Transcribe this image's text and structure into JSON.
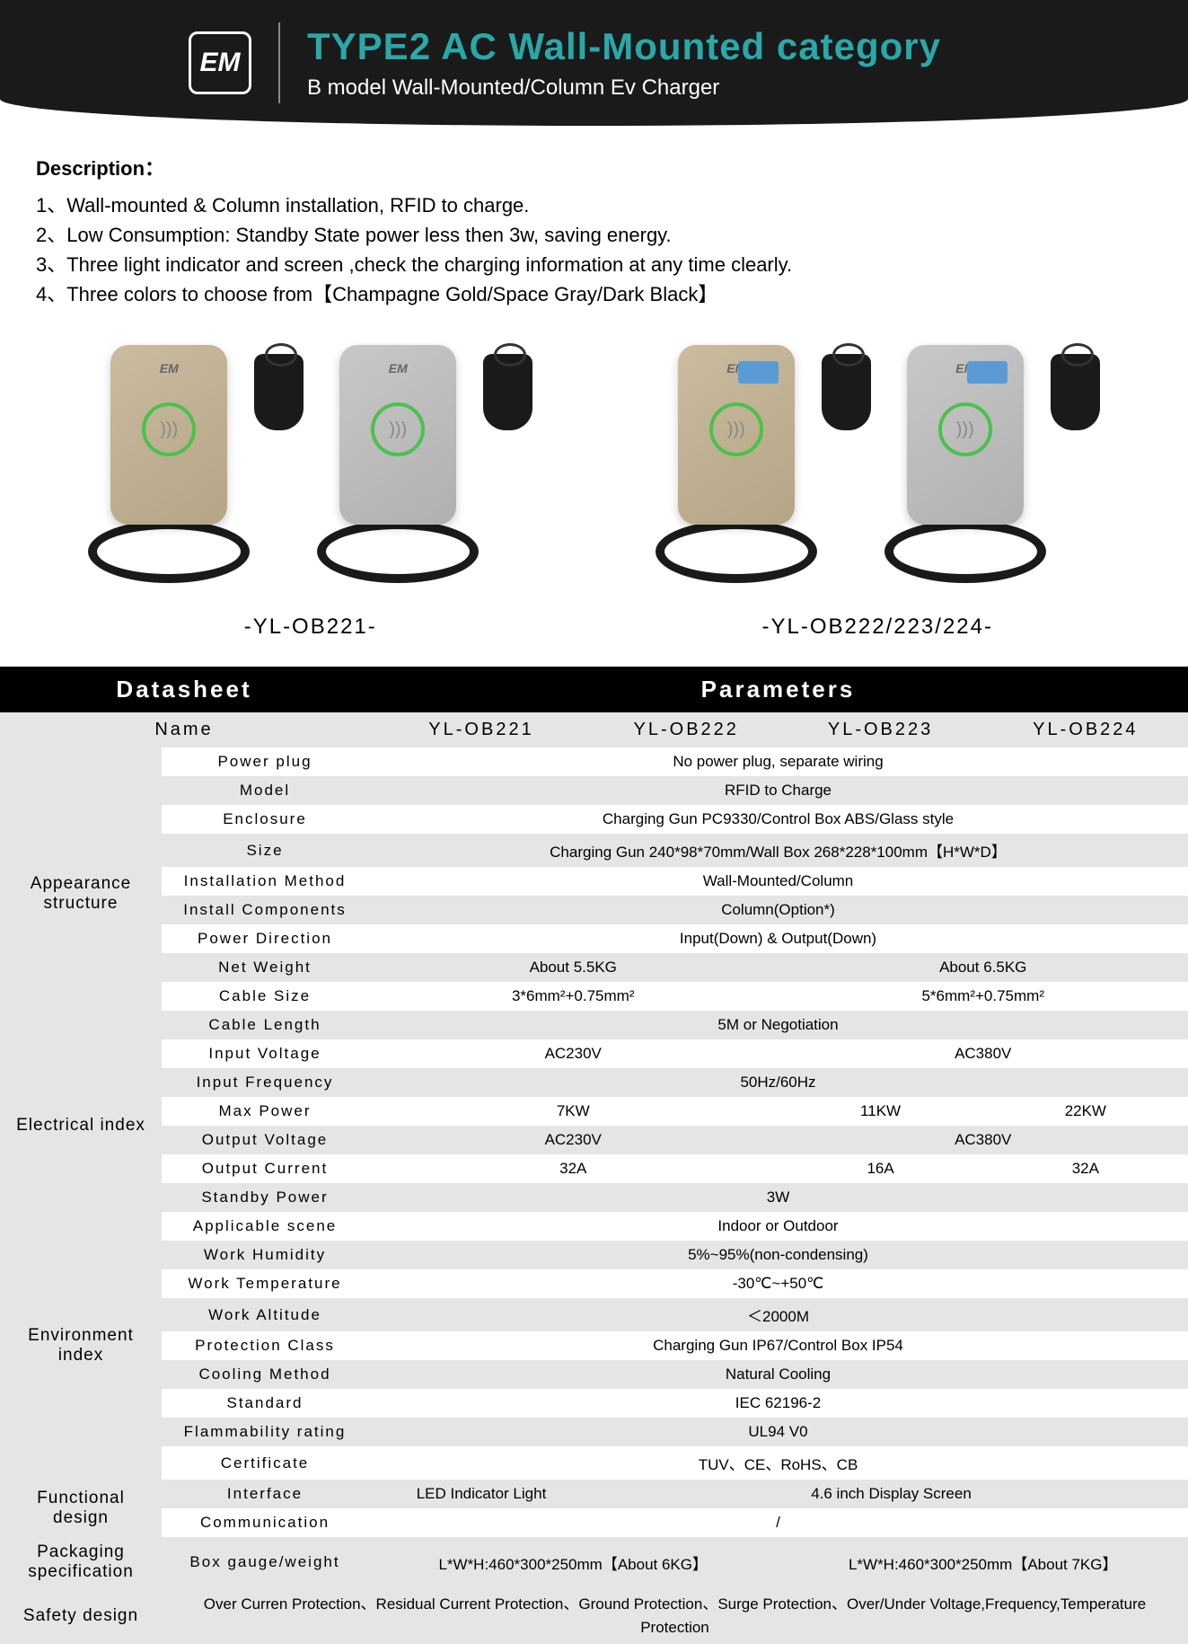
{
  "header": {
    "logo": "EM",
    "title": "TYPE2 AC Wall-Mounted category",
    "subtitle": "B model Wall-Mounted/Column Ev Charger"
  },
  "description": {
    "heading": "Description：",
    "lines": [
      "1、Wall-mounted & Column installation, RFID to charge.",
      "2、Low Consumption: Standby State power less then 3w, saving energy.",
      "3、Three light indicator and screen ,check the charging information at any time clearly.",
      "4、Three colors to choose from【Champagne Gold/Space Gray/Dark Black】"
    ]
  },
  "products": {
    "colors": {
      "gold": "#cbbba0",
      "gray": "#c8c8c8"
    },
    "label_left": "-YL-OB221-",
    "label_right": "-YL-OB222/223/224-"
  },
  "table": {
    "headers": {
      "datasheet": "Datasheet",
      "parameters": "Parameters"
    },
    "name_row": {
      "label": "Name",
      "cols": [
        "YL-OB221",
        "YL-OB222",
        "YL-OB223",
        "YL-OB224"
      ]
    },
    "sections": [
      {
        "category": "Appearance structure",
        "rows": [
          {
            "label": "Power plug",
            "span": 4,
            "vals": [
              "No power plug, separate wiring"
            ]
          },
          {
            "label": "Model",
            "span": 4,
            "vals": [
              "RFID to Charge"
            ]
          },
          {
            "label": "Enclosure",
            "span": 4,
            "vals": [
              "Charging Gun PC9330/Control Box ABS/Glass style"
            ]
          },
          {
            "label": "Size",
            "span": 4,
            "vals": [
              "Charging Gun 240*98*70mm/Wall Box 268*228*100mm【H*W*D】"
            ]
          },
          {
            "label": "Installation Method",
            "span": 4,
            "vals": [
              "Wall-Mounted/Column"
            ]
          },
          {
            "label": "Install Components",
            "span": 4,
            "vals": [
              "Column(Option*)"
            ]
          },
          {
            "label": "Power Direction",
            "span": 4,
            "vals": [
              "Input(Down) & Output(Down)"
            ]
          },
          {
            "label": "Net Weight",
            "span": 2,
            "vals": [
              "About 5.5KG",
              "About 6.5KG"
            ]
          },
          {
            "label": "Cable Size",
            "span": 2,
            "vals": [
              "3*6mm²+0.75mm²",
              "5*6mm²+0.75mm²"
            ]
          },
          {
            "label": "Cable Length",
            "span": 4,
            "vals": [
              "5M or Negotiation"
            ]
          }
        ]
      },
      {
        "category": "Electrical index",
        "rows": [
          {
            "label": "Input Voltage",
            "span": 2,
            "vals": [
              "AC230V",
              "AC380V"
            ]
          },
          {
            "label": "Input Frequency",
            "span": 4,
            "vals": [
              "50Hz/60Hz"
            ]
          },
          {
            "label": "Max Power",
            "span": 0,
            "vals": [
              "7KW",
              "11KW",
              "22KW"
            ],
            "spans": [
              2,
              1,
              1
            ]
          },
          {
            "label": "Output Voltage",
            "span": 0,
            "vals": [
              "AC230V",
              "AC380V"
            ],
            "spans": [
              2,
              2
            ]
          },
          {
            "label": "Output Current",
            "span": 0,
            "vals": [
              "32A",
              "16A",
              "32A"
            ],
            "spans": [
              2,
              1,
              1
            ]
          },
          {
            "label": "Standby Power",
            "span": 4,
            "vals": [
              "3W"
            ]
          }
        ]
      },
      {
        "category": "Environment index",
        "rows": [
          {
            "label": "Applicable scene",
            "span": 4,
            "vals": [
              "Indoor or Outdoor"
            ]
          },
          {
            "label": "Work Humidity",
            "span": 4,
            "vals": [
              "5%~95%(non-condensing)"
            ]
          },
          {
            "label": "Work Temperature",
            "span": 4,
            "vals": [
              "-30℃~+50℃"
            ]
          },
          {
            "label": "Work Altitude",
            "span": 4,
            "vals": [
              "＜2000M"
            ]
          },
          {
            "label": "Protection Class",
            "span": 4,
            "vals": [
              "Charging Gun IP67/Control Box IP54"
            ]
          },
          {
            "label": "Cooling Method",
            "span": 4,
            "vals": [
              "Natural Cooling"
            ]
          },
          {
            "label": "Standard",
            "span": 4,
            "vals": [
              "IEC 62196-2"
            ]
          },
          {
            "label": "Flammability rating",
            "span": 4,
            "vals": [
              "UL94 V0"
            ]
          },
          {
            "label": "Certificate",
            "span": 4,
            "vals": [
              "TUV、CE、RoHS、CB"
            ]
          }
        ]
      },
      {
        "category": "Functional design",
        "rows": [
          {
            "label": "Interface",
            "span": 0,
            "vals": [
              "LED Indicator Light",
              "4.6 inch Display Screen"
            ],
            "spans": [
              1,
              3
            ]
          },
          {
            "label": "Communication",
            "span": 4,
            "vals": [
              "/"
            ]
          }
        ]
      },
      {
        "category": "Packaging specification",
        "rows": [
          {
            "label": "Box gauge/weight",
            "span": 2,
            "vals": [
              "L*W*H:460*300*250mm【About 6KG】",
              "L*W*H:460*300*250mm【About 7KG】"
            ]
          }
        ]
      }
    ],
    "safety": {
      "category": "Safety design",
      "text": "Over Curren Protection、Residual Current Protection、Ground Protection、Surge Protection、Over/Under Voltage,Frequency,Temperature Protection"
    }
  },
  "styling": {
    "row_colors": {
      "gray": "#e5e5e5",
      "white": "#ffffff"
    },
    "header_bg": "#000000",
    "header_fg": "#ffffff",
    "accent": "#2aa8a8"
  }
}
